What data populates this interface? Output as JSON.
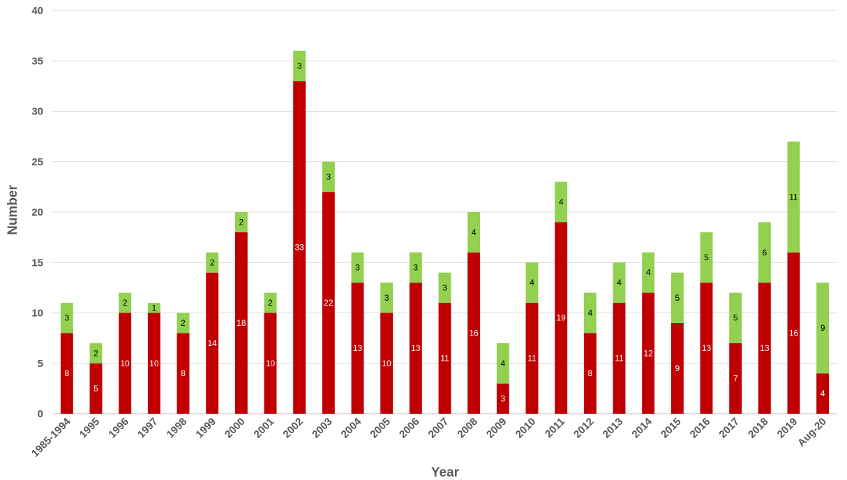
{
  "chart_data": {
    "type": "bar",
    "stacked": true,
    "title": "",
    "xlabel": "Year",
    "ylabel": "Number",
    "ylim": [
      0,
      40
    ],
    "yticks": [
      0,
      5,
      10,
      15,
      20,
      25,
      30,
      35,
      40
    ],
    "grid": true,
    "legend": "none",
    "categories": [
      "1985-1994",
      "1995",
      "1996",
      "1997",
      "1998",
      "1999",
      "2000",
      "2001",
      "2002",
      "2003",
      "2004",
      "2005",
      "2006",
      "2007",
      "2008",
      "2009",
      "2010",
      "2011",
      "2012",
      "2013",
      "2014",
      "2015",
      "2016",
      "2017",
      "2018",
      "2019",
      "Aug-20"
    ],
    "series": [
      {
        "color": "#c00000",
        "label_color": "#ffffff",
        "values": [
          8,
          5,
          10,
          10,
          8,
          14,
          18,
          10,
          33,
          22,
          13,
          10,
          13,
          11,
          16,
          3,
          11,
          19,
          8,
          11,
          12,
          9,
          13,
          7,
          13,
          16,
          4
        ]
      },
      {
        "color": "#92d050",
        "label_color": "#000000",
        "values": [
          3,
          2,
          2,
          1,
          2,
          2,
          2,
          2,
          3,
          3,
          3,
          3,
          3,
          3,
          4,
          4,
          4,
          4,
          4,
          4,
          4,
          5,
          5,
          5,
          6,
          11,
          9
        ]
      }
    ]
  }
}
